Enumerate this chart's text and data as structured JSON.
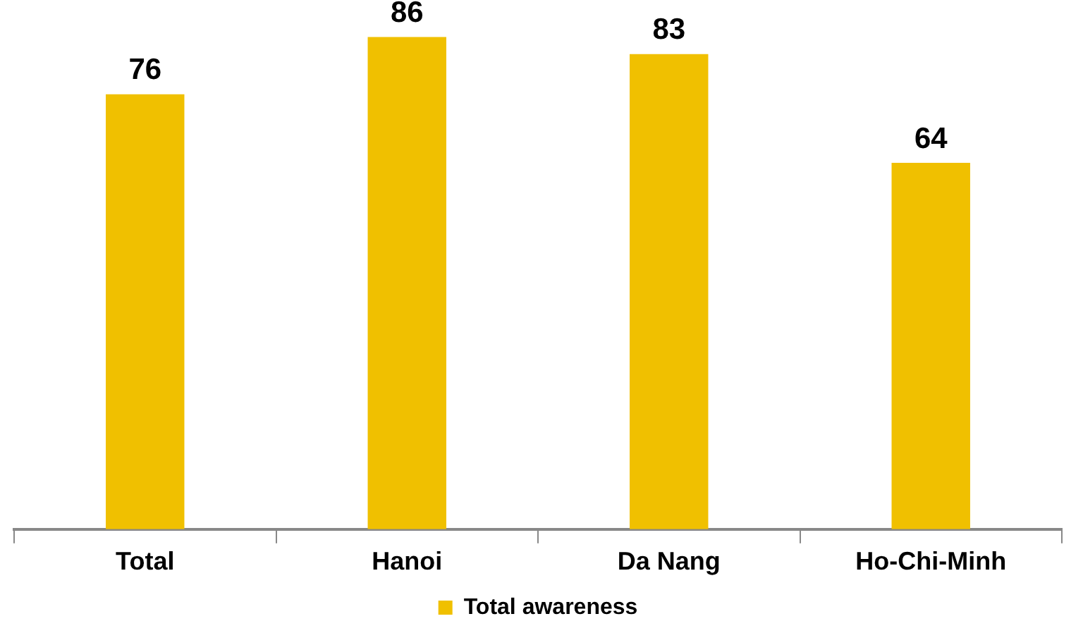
{
  "chart_data": {
    "type": "bar",
    "categories": [
      "Total",
      "Hanoi",
      "Da Nang",
      "Ho-Chi-Minh"
    ],
    "series": [
      {
        "name": "Total awareness",
        "color": "#f0c000",
        "values": [
          76,
          86,
          83,
          64
        ]
      }
    ],
    "data_labels": true,
    "legend": "bottom",
    "grid": false
  }
}
